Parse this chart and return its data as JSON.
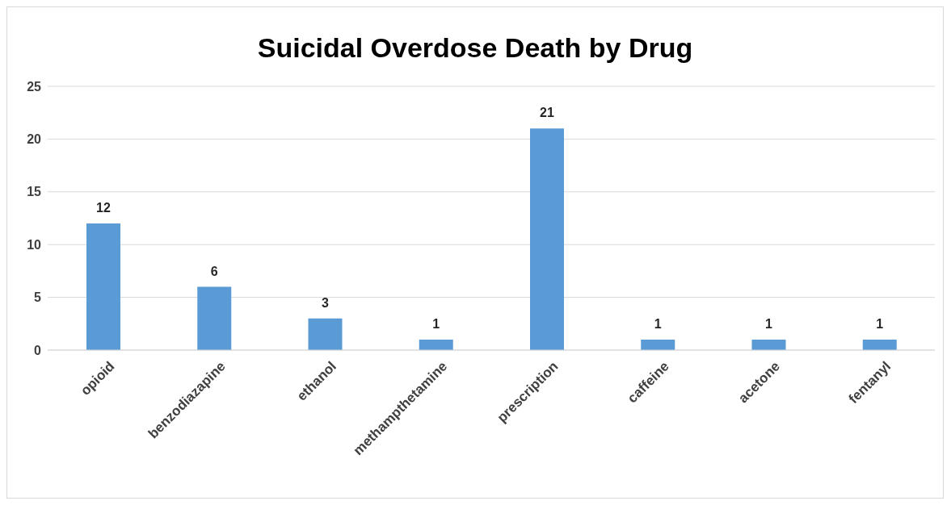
{
  "chart_data": {
    "type": "bar",
    "title": "Suicidal Overdose Death by Drug",
    "categories": [
      "opioid",
      "benzodiazapine",
      "ethanol",
      "methampthetamine",
      "prescription",
      "caffeine",
      "acetone",
      "fentanyl"
    ],
    "values": [
      12,
      6,
      3,
      1,
      21,
      1,
      1,
      1
    ],
    "color": "#5b9bd5",
    "ylim": [
      0,
      25
    ],
    "yticks": [
      0,
      5,
      10,
      15,
      20,
      25
    ],
    "grid": "y",
    "data_labels": true
  }
}
